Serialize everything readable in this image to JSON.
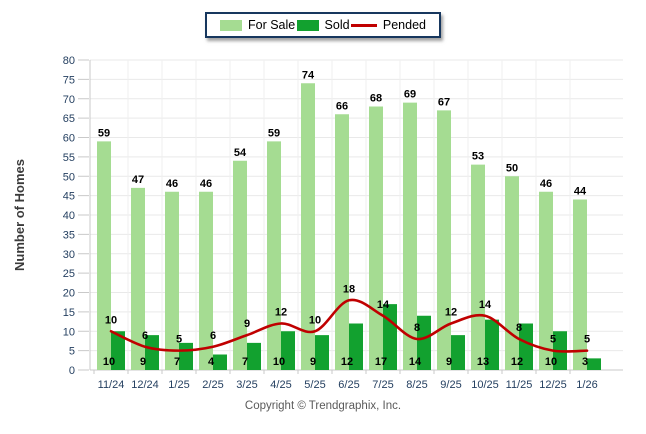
{
  "legend": {
    "items": [
      {
        "label": "For Sale",
        "color": "#A5DC92",
        "swatch": "box"
      },
      {
        "label": "Sold",
        "color": "#12A12F",
        "swatch": "box"
      },
      {
        "label": "Pended",
        "color": "#C00000",
        "swatch": "line"
      }
    ]
  },
  "chart_data": {
    "type": "bar",
    "categories": [
      "11/24",
      "12/24",
      "1/25",
      "2/25",
      "3/25",
      "4/25",
      "5/25",
      "6/25",
      "7/25",
      "8/25",
      "9/25",
      "10/25",
      "11/25",
      "12/25",
      "1/26"
    ],
    "series": [
      {
        "name": "For Sale",
        "type": "bar",
        "color": "#A5DC92",
        "values": [
          59,
          47,
          46,
          46,
          54,
          59,
          74,
          66,
          68,
          69,
          67,
          53,
          50,
          46,
          44
        ]
      },
      {
        "name": "Sold",
        "type": "bar",
        "color": "#12A12F",
        "values": [
          10,
          9,
          7,
          4,
          7,
          10,
          9,
          12,
          17,
          14,
          9,
          13,
          12,
          10,
          3
        ]
      },
      {
        "name": "Pended",
        "type": "line",
        "color": "#C00000",
        "values": [
          10,
          6,
          5,
          6,
          9,
          12,
          10,
          18,
          14,
          8,
          12,
          14,
          8,
          5,
          5
        ]
      }
    ],
    "title": "",
    "xlabel": "",
    "ylabel": "Number of Homes",
    "ylim": [
      0,
      80
    ],
    "yticks": [
      0,
      5,
      10,
      15,
      20,
      25,
      30,
      35,
      40,
      45,
      50,
      55,
      60,
      65,
      70,
      75,
      80
    ],
    "grid": true,
    "legend_position": "top-center",
    "value_labels": true
  },
  "colors": {
    "grid_h": "#E9E9E9",
    "grid_v": "#EFEFEF",
    "axis": "#C9C9C9",
    "tick_label": "#254061",
    "value_label": "#000000",
    "axis_title": "#3b3b3b"
  },
  "footer": {
    "copyright": "Copyright © Trendgraphix, Inc."
  }
}
